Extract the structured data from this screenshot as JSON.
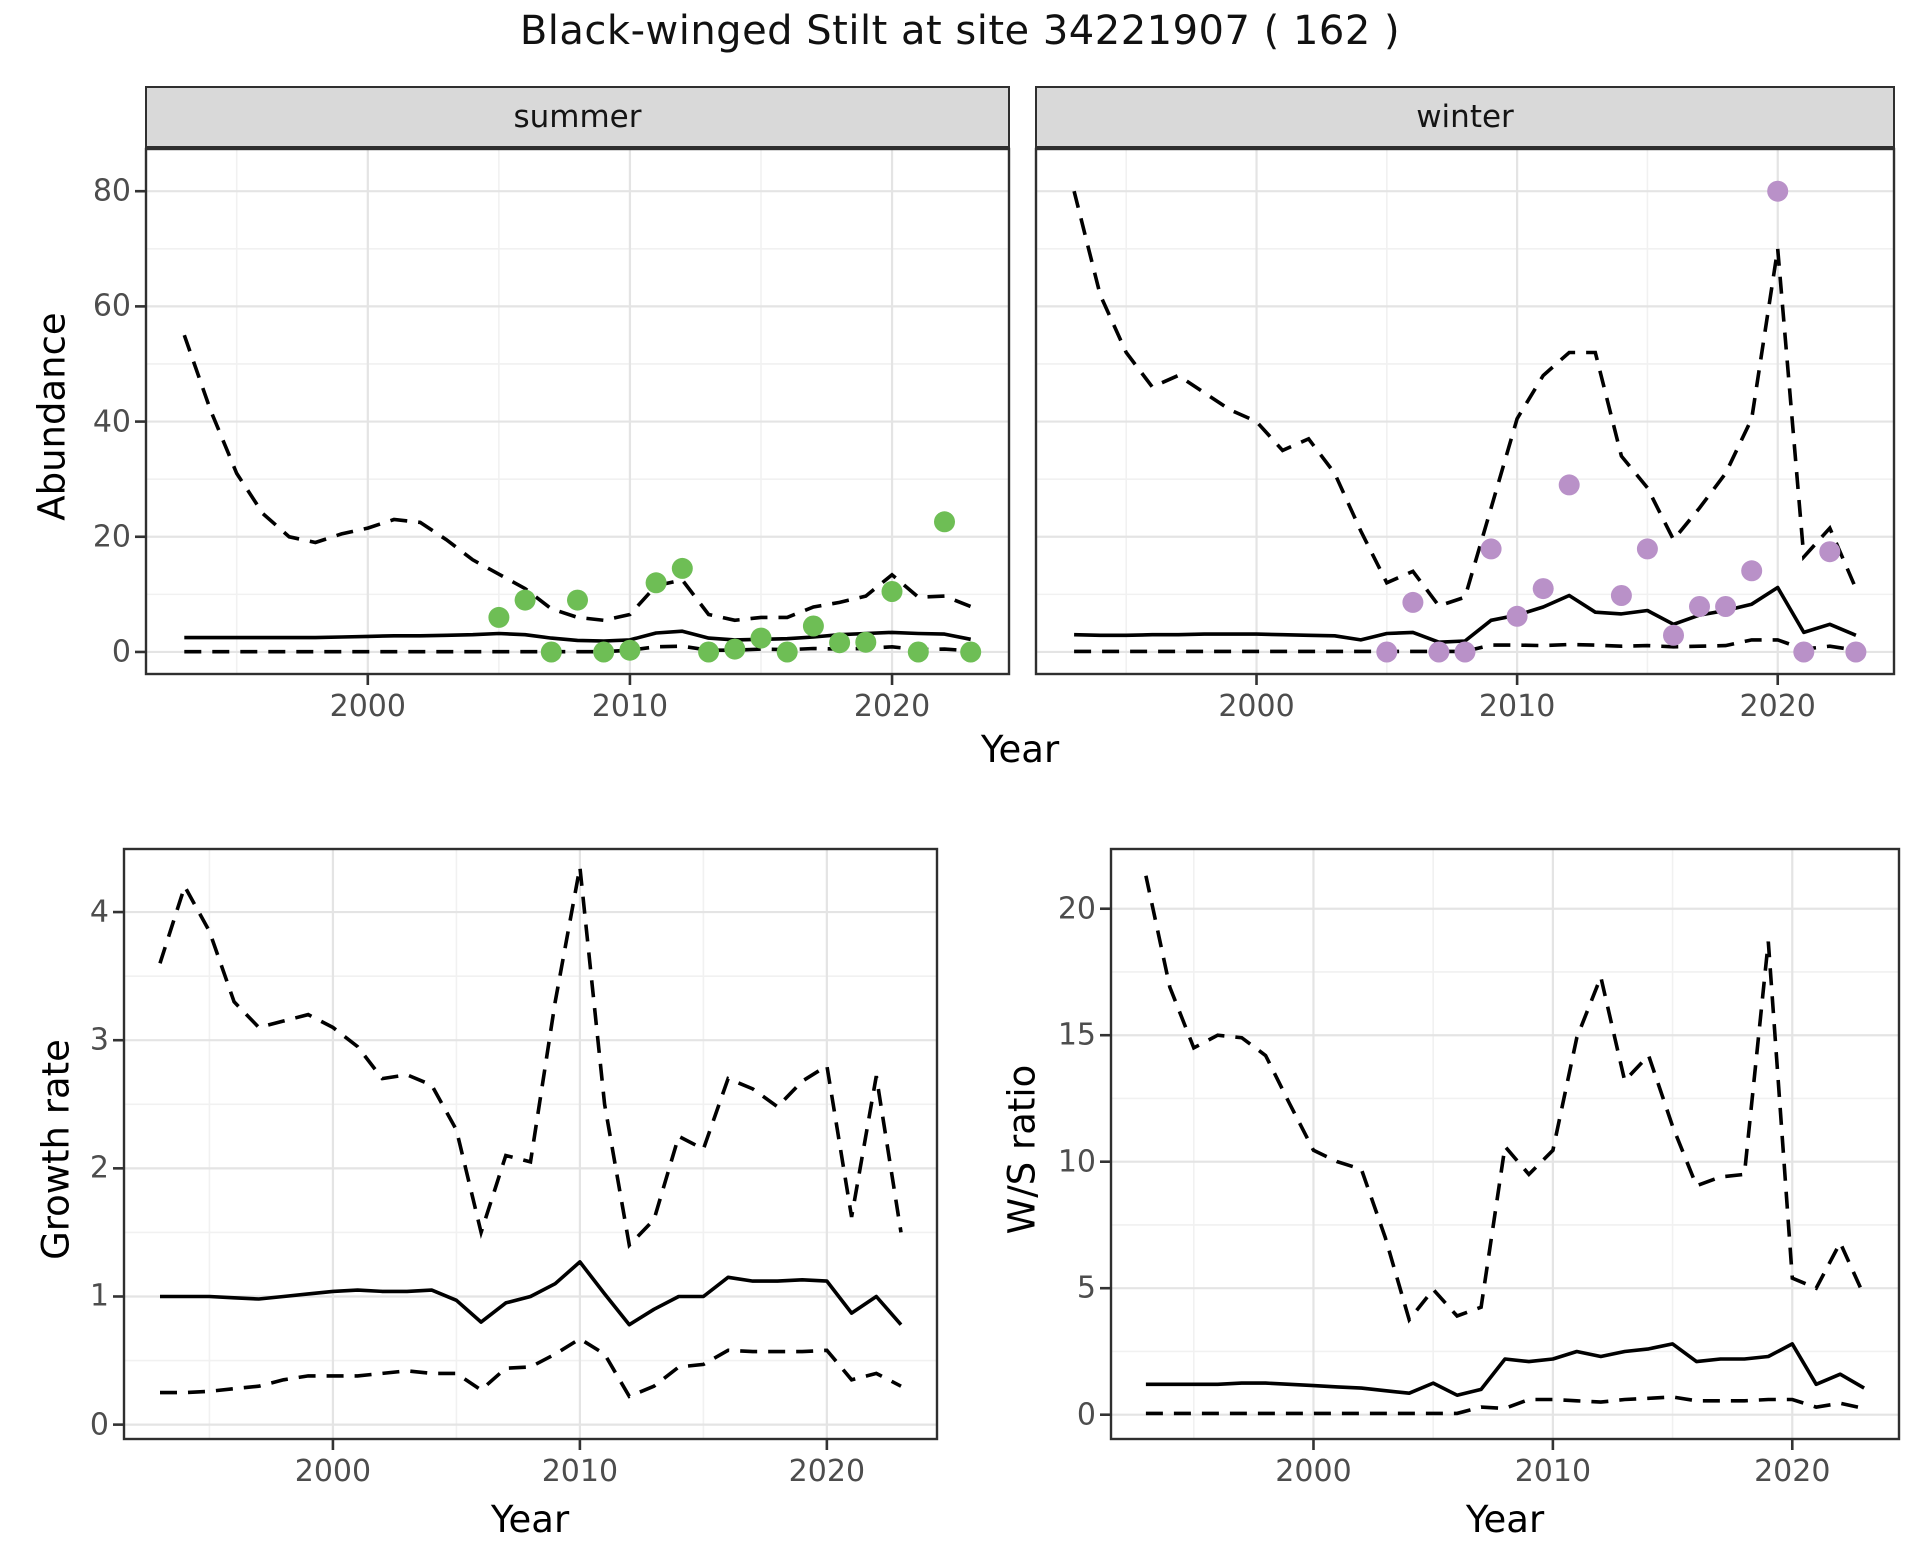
{
  "title": "Black-winged Stilt at site 34221907 ( 162 )",
  "colors": {
    "summer_point": "#6EBE55",
    "winter_point": "#B991C8",
    "line": "#000000",
    "grid_major": "#E4E4E4",
    "grid_minor": "#F1F1F1",
    "panel_border": "#2F2F2F",
    "tick_mark": "#333333",
    "tick_label": "#4D4D4D",
    "strip_bg": "#D9D9D9"
  },
  "shared_xlabel": "Year",
  "chart_data": [
    {
      "type": "line+scatter",
      "panel": "abundance-summer",
      "facet_label": "summer",
      "ylabel": "Abundance",
      "xlabel": "Year",
      "xlim": [
        1991.5,
        2024.5
      ],
      "ylim": [
        -4,
        87.5
      ],
      "xticks": [
        2000,
        2010,
        2020
      ],
      "yticks": [
        0,
        20,
        40,
        60,
        80
      ],
      "xminor": [
        1995,
        2005,
        2015
      ],
      "yminor": [
        10,
        30,
        50,
        70
      ],
      "grid": true,
      "legend_position": "none",
      "line_color": "#000000",
      "point_color": "#6EBE55",
      "years": [
        1993,
        1994,
        1995,
        1996,
        1997,
        1998,
        1999,
        2000,
        2001,
        2002,
        2003,
        2004,
        2005,
        2006,
        2007,
        2008,
        2009,
        2010,
        2011,
        2012,
        2013,
        2014,
        2015,
        2016,
        2017,
        2018,
        2019,
        2020,
        2021,
        2022,
        2023
      ],
      "median": [
        2.5,
        2.5,
        2.5,
        2.5,
        2.5,
        2.5,
        2.6,
        2.7,
        2.8,
        2.8,
        2.9,
        3.0,
        3.2,
        3.0,
        2.4,
        2.0,
        1.9,
        2.1,
        3.3,
        3.6,
        2.4,
        2.1,
        2.2,
        2.3,
        2.6,
        3.0,
        3.2,
        3.4,
        3.2,
        3.1,
        2.2
      ],
      "ci_upper": [
        55,
        42,
        31,
        24,
        20,
        19,
        20.5,
        21.5,
        23,
        22.5,
        19.5,
        16,
        13.5,
        11,
        7.5,
        6,
        5.5,
        6.5,
        11.5,
        12.5,
        6.5,
        5.5,
        6,
        6,
        7.8,
        8.6,
        9.7,
        13.4,
        9.5,
        9.7,
        7.9
      ],
      "ci_lower": [
        0.05,
        0.05,
        0.05,
        0.05,
        0.05,
        0.05,
        0.05,
        0.05,
        0.05,
        0.05,
        0.05,
        0.05,
        0.05,
        0.05,
        0.05,
        0.05,
        0.05,
        0.3,
        0.9,
        1.0,
        0.3,
        0.3,
        0.5,
        0.4,
        0.6,
        0.5,
        0.6,
        0.9,
        0.4,
        0.5,
        0.2
      ],
      "points": {
        "years": [
          2005,
          2006,
          2007,
          2008,
          2009,
          2010,
          2011,
          2012,
          2013,
          2014,
          2015,
          2016,
          2017,
          2018,
          2019,
          2020,
          2021,
          2022,
          2023
        ],
        "values": [
          6,
          9,
          0,
          9,
          0,
          0.3,
          12,
          14.5,
          0,
          0.5,
          2.4,
          0,
          4.5,
          1.6,
          1.7,
          10.5,
          0,
          22.6,
          0
        ]
      }
    },
    {
      "type": "line+scatter",
      "panel": "abundance-winter",
      "facet_label": "winter",
      "ylabel": "Abundance",
      "xlabel": "Year",
      "xlim": [
        1991.5,
        2024.5
      ],
      "ylim": [
        -4,
        87.5
      ],
      "xticks": [
        2000,
        2010,
        2020
      ],
      "yticks": [
        0,
        20,
        40,
        60,
        80
      ],
      "xminor": [
        1995,
        2005,
        2015
      ],
      "yminor": [
        10,
        30,
        50,
        70
      ],
      "grid": true,
      "legend_position": "none",
      "line_color": "#000000",
      "point_color": "#B991C8",
      "years": [
        1993,
        1994,
        1995,
        1996,
        1997,
        1998,
        1999,
        2000,
        2001,
        2002,
        2003,
        2004,
        2005,
        2006,
        2007,
        2008,
        2009,
        2010,
        2011,
        2012,
        2013,
        2014,
        2015,
        2016,
        2017,
        2018,
        2019,
        2020,
        2021,
        2022,
        2023
      ],
      "median": [
        3.0,
        2.9,
        2.9,
        3.0,
        3.0,
        3.1,
        3.1,
        3.1,
        3.0,
        2.9,
        2.8,
        2.1,
        3.2,
        3.4,
        1.7,
        1.9,
        5.5,
        6.4,
        7.8,
        9.8,
        6.9,
        6.6,
        7.2,
        4.8,
        6.4,
        7.2,
        8.3,
        11.2,
        3.4,
        4.8,
        2.9
      ],
      "ci_upper": [
        80,
        62,
        52,
        46,
        48,
        45,
        42,
        40,
        35,
        37,
        31,
        21,
        12,
        14,
        8,
        9.5,
        25,
        40.5,
        48,
        52,
        52,
        34,
        28.5,
        19.5,
        25,
        31,
        40.5,
        70,
        16.5,
        21.5,
        11
      ],
      "ci_lower": [
        0.1,
        0.1,
        0.1,
        0.1,
        0.1,
        0.1,
        0.1,
        0.1,
        0.1,
        0.1,
        0.1,
        0.1,
        0.1,
        0.1,
        0.1,
        0.1,
        1.2,
        1.2,
        1.1,
        1.3,
        1.2,
        1.0,
        1.1,
        0.9,
        1.0,
        1.1,
        2.1,
        2.1,
        0.5,
        1.0,
        0.3
      ],
      "points": {
        "years": [
          2005,
          2006,
          2007,
          2008,
          2009,
          2010,
          2011,
          2012,
          2014,
          2015,
          2016,
          2017,
          2018,
          2019,
          2020,
          2021,
          2022,
          2023
        ],
        "values": [
          0,
          8.6,
          0,
          0,
          17.9,
          6.2,
          11,
          29,
          9.8,
          17.9,
          2.9,
          7.9,
          7.9,
          14.1,
          80,
          0,
          17.4,
          0
        ]
      }
    },
    {
      "type": "line",
      "panel": "growth-rate",
      "facet_label": "",
      "ylabel": "Growth rate",
      "xlabel": "Year",
      "xlim": [
        1991.5,
        2024.5
      ],
      "ylim": [
        -0.12,
        4.5
      ],
      "xticks": [
        2000,
        2010,
        2020
      ],
      "yticks": [
        0,
        1,
        2,
        3,
        4
      ],
      "xminor": [
        1995,
        2005,
        2015
      ],
      "yminor": [
        0.5,
        1.5,
        2.5,
        3.5
      ],
      "grid": true,
      "legend_position": "none",
      "line_color": "#000000",
      "years": [
        1993,
        1994,
        1995,
        1996,
        1997,
        1998,
        1999,
        2000,
        2001,
        2002,
        2003,
        2004,
        2005,
        2006,
        2007,
        2008,
        2009,
        2010,
        2011,
        2012,
        2013,
        2014,
        2015,
        2016,
        2017,
        2018,
        2019,
        2020,
        2021,
        2022,
        2023
      ],
      "median": [
        1.0,
        1.0,
        1.0,
        0.99,
        0.98,
        1.0,
        1.02,
        1.04,
        1.05,
        1.04,
        1.04,
        1.05,
        0.97,
        0.8,
        0.95,
        1.0,
        1.1,
        1.27,
        1.02,
        0.78,
        0.9,
        1.0,
        1.0,
        1.15,
        1.12,
        1.12,
        1.13,
        1.12,
        0.87,
        1.0,
        0.78
      ],
      "ci_upper": [
        3.6,
        4.2,
        3.85,
        3.3,
        3.1,
        3.15,
        3.2,
        3.1,
        2.95,
        2.7,
        2.73,
        2.65,
        2.3,
        1.5,
        2.1,
        2.05,
        3.3,
        4.35,
        2.5,
        1.4,
        1.6,
        2.25,
        2.15,
        2.7,
        2.62,
        2.48,
        2.68,
        2.8,
        1.62,
        2.72,
        1.5
      ],
      "ci_lower": [
        0.25,
        0.25,
        0.26,
        0.28,
        0.3,
        0.35,
        0.38,
        0.38,
        0.38,
        0.4,
        0.42,
        0.4,
        0.4,
        0.27,
        0.44,
        0.45,
        0.55,
        0.67,
        0.55,
        0.22,
        0.3,
        0.45,
        0.47,
        0.58,
        0.57,
        0.57,
        0.57,
        0.58,
        0.35,
        0.4,
        0.3
      ]
    },
    {
      "type": "line",
      "panel": "ws-ratio",
      "facet_label": "",
      "ylabel": "W/S ratio",
      "xlabel": "Year",
      "xlim": [
        1991.5,
        2024.5
      ],
      "ylim": [
        -1,
        22.4
      ],
      "xticks": [
        2000,
        2010,
        2020
      ],
      "yticks": [
        0,
        5,
        10,
        15,
        20
      ],
      "xminor": [
        1995,
        2005,
        2015
      ],
      "yminor": [
        2.5,
        7.5,
        12.5,
        17.5
      ],
      "grid": true,
      "legend_position": "none",
      "line_color": "#000000",
      "years": [
        1993,
        1994,
        1995,
        1996,
        1997,
        1998,
        1999,
        2000,
        2001,
        2002,
        2003,
        2004,
        2005,
        2006,
        2007,
        2008,
        2009,
        2010,
        2011,
        2012,
        2013,
        2014,
        2015,
        2016,
        2017,
        2018,
        2019,
        2020,
        2021,
        2022,
        2023
      ],
      "median": [
        1.2,
        1.2,
        1.2,
        1.2,
        1.25,
        1.25,
        1.2,
        1.15,
        1.1,
        1.05,
        0.95,
        0.85,
        1.25,
        0.77,
        1.0,
        2.2,
        2.1,
        2.2,
        2.5,
        2.3,
        2.5,
        2.6,
        2.8,
        2.1,
        2.2,
        2.2,
        2.3,
        2.8,
        1.2,
        1.6,
        1.05
      ],
      "ci_upper": [
        21.3,
        16.9,
        14.5,
        15.0,
        14.9,
        14.2,
        12.3,
        10.45,
        10.0,
        9.7,
        7.0,
        3.75,
        4.95,
        3.9,
        4.25,
        10.6,
        9.5,
        10.45,
        14.9,
        17.3,
        13.2,
        14.2,
        11.4,
        9.05,
        9.4,
        9.5,
        18.7,
        5.4,
        5.0,
        6.8,
        4.7
      ],
      "ci_lower": [
        0.05,
        0.05,
        0.05,
        0.05,
        0.05,
        0.05,
        0.05,
        0.05,
        0.05,
        0.05,
        0.05,
        0.05,
        0.05,
        0.05,
        0.3,
        0.25,
        0.6,
        0.6,
        0.55,
        0.5,
        0.6,
        0.65,
        0.7,
        0.55,
        0.55,
        0.55,
        0.6,
        0.6,
        0.3,
        0.45,
        0.25
      ]
    }
  ]
}
